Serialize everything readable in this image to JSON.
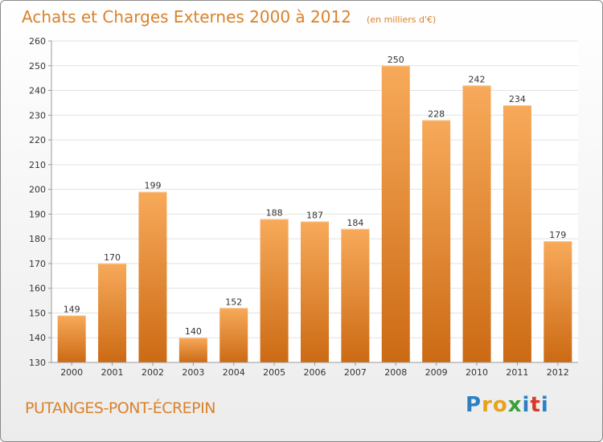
{
  "header": {
    "title": "Achats et Charges Externes 2000 à 2012",
    "unit": "(en milliers d'€)"
  },
  "footer": {
    "commune": "PUTANGES-PONT-ÉCREPIN",
    "logo_letters": [
      "P",
      "r",
      "o",
      "x",
      "i",
      "t",
      "i"
    ],
    "logo_colors": [
      "#2e7fc1",
      "#e8a21a",
      "#e8a21a",
      "#3aa13a",
      "#2e7fc1",
      "#d93a2a",
      "#2e7fc1"
    ]
  },
  "colors": {
    "bar_light": "#f7aa5a",
    "bar_dark": "#cc6a14",
    "grid": "#e2e2e2",
    "title": "#d9822b"
  },
  "chart_data": {
    "type": "bar",
    "categories": [
      "2000",
      "2001",
      "2002",
      "2003",
      "2004",
      "2005",
      "2006",
      "2007",
      "2008",
      "2009",
      "2010",
      "2011",
      "2012"
    ],
    "values": [
      149,
      170,
      199,
      140,
      152,
      188,
      187,
      184,
      250,
      228,
      242,
      234,
      179
    ],
    "ylim": [
      130,
      260
    ],
    "yticks": [
      130,
      140,
      150,
      160,
      170,
      180,
      190,
      200,
      210,
      220,
      230,
      240,
      250,
      260
    ],
    "grid": true,
    "xlabel": "",
    "ylabel": ""
  }
}
